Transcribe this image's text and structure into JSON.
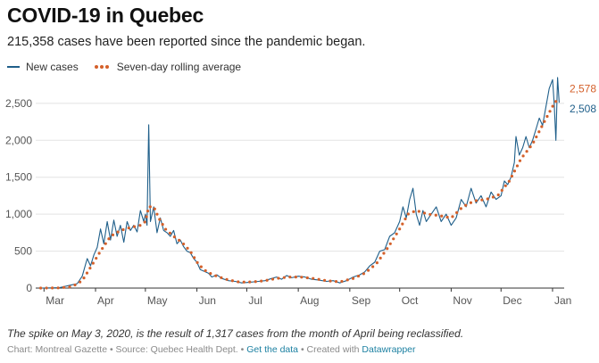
{
  "header": {
    "title": "COVID-19 in Quebec",
    "subtitle": "215,358 cases have been reported since the pandemic began."
  },
  "legend": {
    "new_cases": "New cases",
    "rolling_avg": "Seven-day rolling average"
  },
  "colors": {
    "new_cases": "#1f5f8a",
    "rolling_avg": "#d4602a",
    "grid": "#e3e3e3",
    "axis_text": "#555555"
  },
  "annotation": "The spike on May 3, 2020, is the result of 1,317 cases from the month of April being reclassified.",
  "footer": {
    "credit": "Chart: Montreal Gazette • Source: Quebec Health Dept. • ",
    "get_data": "Get the data",
    "separator": " • Created with ",
    "datawrapper": "Datawrapper"
  },
  "chart_data": {
    "type": "line",
    "grid": "horizontal",
    "legend_position": "top-left",
    "xlim": [
      "2020-02-25",
      "2021-01-08"
    ],
    "ylim": [
      0,
      2800
    ],
    "yticks": [
      0,
      500,
      1000,
      1500,
      2000,
      2500
    ],
    "ytick_labels": [
      "0",
      "500",
      "1,000",
      "1,500",
      "2,000",
      "2,500"
    ],
    "xticks": [
      {
        "date": "2020-03-01",
        "label": "Mar"
      },
      {
        "date": "2020-04-01",
        "label": "Apr"
      },
      {
        "date": "2020-05-01",
        "label": "May"
      },
      {
        "date": "2020-06-01",
        "label": "Jun"
      },
      {
        "date": "2020-07-01",
        "label": "Jul"
      },
      {
        "date": "2020-08-01",
        "label": "Aug"
      },
      {
        "date": "2020-09-01",
        "label": "Sep"
      },
      {
        "date": "2020-10-01",
        "label": "Oct"
      },
      {
        "date": "2020-11-01",
        "label": "Nov"
      },
      {
        "date": "2020-12-01",
        "label": "Dec"
      },
      {
        "date": "2021-01-01",
        "label": "Jan"
      }
    ],
    "series": [
      {
        "name": "New cases",
        "end_label": "2,508",
        "points": [
          [
            "2020-02-28",
            0
          ],
          [
            "2020-03-10",
            5
          ],
          [
            "2020-03-17",
            40
          ],
          [
            "2020-03-21",
            60
          ],
          [
            "2020-03-24",
            160
          ],
          [
            "2020-03-27",
            400
          ],
          [
            "2020-03-29",
            300
          ],
          [
            "2020-03-31",
            450
          ],
          [
            "2020-04-02",
            550
          ],
          [
            "2020-04-04",
            800
          ],
          [
            "2020-04-06",
            600
          ],
          [
            "2020-04-08",
            900
          ],
          [
            "2020-04-10",
            650
          ],
          [
            "2020-04-12",
            920
          ],
          [
            "2020-04-14",
            700
          ],
          [
            "2020-04-16",
            850
          ],
          [
            "2020-04-18",
            620
          ],
          [
            "2020-04-20",
            900
          ],
          [
            "2020-04-22",
            780
          ],
          [
            "2020-04-24",
            850
          ],
          [
            "2020-04-26",
            760
          ],
          [
            "2020-04-28",
            1050
          ],
          [
            "2020-04-30",
            900
          ],
          [
            "2020-05-01",
            1000
          ],
          [
            "2020-05-02",
            850
          ],
          [
            "2020-05-03",
            2210
          ],
          [
            "2020-05-04",
            900
          ],
          [
            "2020-05-06",
            1100
          ],
          [
            "2020-05-08",
            750
          ],
          [
            "2020-05-10",
            950
          ],
          [
            "2020-05-12",
            780
          ],
          [
            "2020-05-14",
            750
          ],
          [
            "2020-05-16",
            700
          ],
          [
            "2020-05-18",
            780
          ],
          [
            "2020-05-20",
            600
          ],
          [
            "2020-05-22",
            650
          ],
          [
            "2020-05-24",
            560
          ],
          [
            "2020-05-26",
            500
          ],
          [
            "2020-05-28",
            480
          ],
          [
            "2020-05-30",
            400
          ],
          [
            "2020-06-01",
            350
          ],
          [
            "2020-06-03",
            250
          ],
          [
            "2020-06-05",
            230
          ],
          [
            "2020-06-08",
            200
          ],
          [
            "2020-06-10",
            150
          ],
          [
            "2020-06-13",
            180
          ],
          [
            "2020-06-16",
            130
          ],
          [
            "2020-06-20",
            100
          ],
          [
            "2020-06-24",
            90
          ],
          [
            "2020-06-28",
            70
          ],
          [
            "2020-07-03",
            80
          ],
          [
            "2020-07-08",
            90
          ],
          [
            "2020-07-12",
            100
          ],
          [
            "2020-07-16",
            130
          ],
          [
            "2020-07-19",
            150
          ],
          [
            "2020-07-22",
            120
          ],
          [
            "2020-07-25",
            170
          ],
          [
            "2020-07-28",
            140
          ],
          [
            "2020-08-01",
            160
          ],
          [
            "2020-08-05",
            150
          ],
          [
            "2020-08-09",
            120
          ],
          [
            "2020-08-13",
            110
          ],
          [
            "2020-08-18",
            90
          ],
          [
            "2020-08-22",
            100
          ],
          [
            "2020-08-26",
            70
          ],
          [
            "2020-08-30",
            100
          ],
          [
            "2020-09-03",
            150
          ],
          [
            "2020-09-07",
            180
          ],
          [
            "2020-09-10",
            220
          ],
          [
            "2020-09-13",
            300
          ],
          [
            "2020-09-16",
            350
          ],
          [
            "2020-09-19",
            500
          ],
          [
            "2020-09-22",
            520
          ],
          [
            "2020-09-25",
            700
          ],
          [
            "2020-09-28",
            750
          ],
          [
            "2020-10-01",
            900
          ],
          [
            "2020-10-03",
            1100
          ],
          [
            "2020-10-05",
            950
          ],
          [
            "2020-10-07",
            1200
          ],
          [
            "2020-10-09",
            1350
          ],
          [
            "2020-10-11",
            1000
          ],
          [
            "2020-10-13",
            850
          ],
          [
            "2020-10-15",
            1050
          ],
          [
            "2020-10-17",
            900
          ],
          [
            "2020-10-20",
            1000
          ],
          [
            "2020-10-23",
            1100
          ],
          [
            "2020-10-26",
            900
          ],
          [
            "2020-10-29",
            1000
          ],
          [
            "2020-11-01",
            850
          ],
          [
            "2020-11-04",
            950
          ],
          [
            "2020-11-07",
            1200
          ],
          [
            "2020-11-10",
            1100
          ],
          [
            "2020-11-13",
            1350
          ],
          [
            "2020-11-16",
            1150
          ],
          [
            "2020-11-19",
            1250
          ],
          [
            "2020-11-22",
            1100
          ],
          [
            "2020-11-25",
            1300
          ],
          [
            "2020-11-28",
            1200
          ],
          [
            "2020-12-01",
            1250
          ],
          [
            "2020-12-03",
            1450
          ],
          [
            "2020-12-05",
            1400
          ],
          [
            "2020-12-07",
            1500
          ],
          [
            "2020-12-09",
            1700
          ],
          [
            "2020-12-10",
            2050
          ],
          [
            "2020-12-12",
            1800
          ],
          [
            "2020-12-14",
            1900
          ],
          [
            "2020-12-16",
            2050
          ],
          [
            "2020-12-18",
            1900
          ],
          [
            "2020-12-20",
            2000
          ],
          [
            "2020-12-22",
            2150
          ],
          [
            "2020-12-24",
            2300
          ],
          [
            "2020-12-26",
            2200
          ],
          [
            "2020-12-28",
            2450
          ],
          [
            "2020-12-30",
            2700
          ],
          [
            "2021-01-01",
            2820
          ],
          [
            "2021-01-02",
            2500
          ],
          [
            "2021-01-03",
            2000
          ],
          [
            "2021-01-04",
            2850
          ],
          [
            "2021-01-05",
            2508
          ]
        ]
      },
      {
        "name": "Seven-day rolling average",
        "end_label": "2,578",
        "points": [
          [
            "2020-02-28",
            0
          ],
          [
            "2020-03-10",
            3
          ],
          [
            "2020-03-18",
            20
          ],
          [
            "2020-03-24",
            100
          ],
          [
            "2020-03-29",
            280
          ],
          [
            "2020-04-04",
            500
          ],
          [
            "2020-04-10",
            700
          ],
          [
            "2020-04-16",
            780
          ],
          [
            "2020-04-22",
            820
          ],
          [
            "2020-04-28",
            850
          ],
          [
            "2020-05-01",
            900
          ],
          [
            "2020-05-03",
            1100
          ],
          [
            "2020-05-06",
            1100
          ],
          [
            "2020-05-09",
            950
          ],
          [
            "2020-05-13",
            800
          ],
          [
            "2020-05-18",
            700
          ],
          [
            "2020-05-23",
            620
          ],
          [
            "2020-05-28",
            500
          ],
          [
            "2020-06-02",
            320
          ],
          [
            "2020-06-07",
            220
          ],
          [
            "2020-06-13",
            160
          ],
          [
            "2020-06-20",
            110
          ],
          [
            "2020-06-27",
            80
          ],
          [
            "2020-07-05",
            85
          ],
          [
            "2020-07-12",
            100
          ],
          [
            "2020-07-19",
            130
          ],
          [
            "2020-07-26",
            150
          ],
          [
            "2020-08-02",
            150
          ],
          [
            "2020-08-10",
            130
          ],
          [
            "2020-08-18",
            100
          ],
          [
            "2020-08-26",
            85
          ],
          [
            "2020-09-03",
            130
          ],
          [
            "2020-09-10",
            200
          ],
          [
            "2020-09-17",
            330
          ],
          [
            "2020-09-24",
            550
          ],
          [
            "2020-10-01",
            800
          ],
          [
            "2020-10-06",
            1000
          ],
          [
            "2020-10-11",
            1050
          ],
          [
            "2020-10-18",
            1000
          ],
          [
            "2020-10-25",
            980
          ],
          [
            "2020-11-01",
            950
          ],
          [
            "2020-11-08",
            1100
          ],
          [
            "2020-11-15",
            1180
          ],
          [
            "2020-11-22",
            1200
          ],
          [
            "2020-11-29",
            1250
          ],
          [
            "2020-12-06",
            1450
          ],
          [
            "2020-12-13",
            1750
          ],
          [
            "2020-12-20",
            1950
          ],
          [
            "2020-12-27",
            2250
          ],
          [
            "2021-01-02",
            2500
          ],
          [
            "2021-01-05",
            2578
          ]
        ]
      }
    ]
  }
}
